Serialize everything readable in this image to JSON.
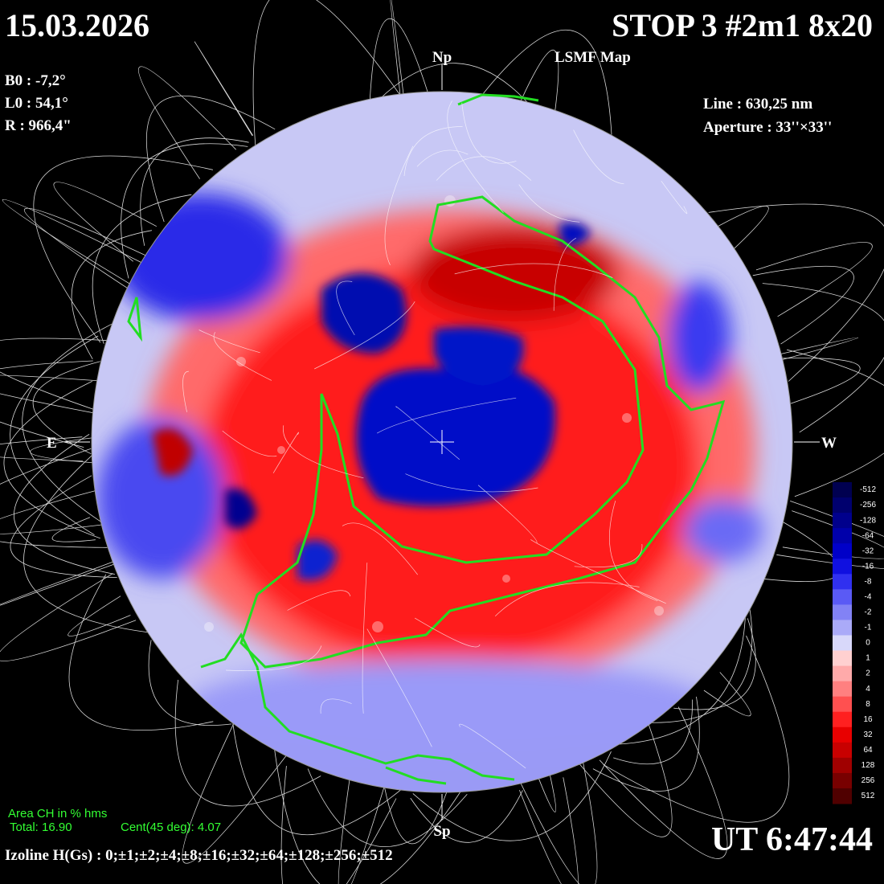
{
  "header": {
    "date": "15.03.2026",
    "title": "STOP 3 #2m1 8x20",
    "subtitle": "LSMF  Map"
  },
  "params": [
    "B0 : -7,2°",
    "L0 : 54,1°",
    "R  : 966,4\""
  ],
  "instrument": [
    "Line : 630,25 nm",
    "Aperture : 33''×33''"
  ],
  "directions": {
    "north": "Np",
    "south": "Sp",
    "east": "E",
    "west": "W"
  },
  "colorbar": {
    "labels": [
      -512,
      -256,
      -128,
      -64,
      -32,
      -16,
      -8,
      -4,
      -2,
      -1,
      0,
      1,
      2,
      4,
      8,
      16,
      32,
      64,
      128,
      256,
      512
    ],
    "colors": [
      "#000050",
      "#00006e",
      "#00008c",
      "#0000aa",
      "#0000c8",
      "#1010e0",
      "#3030f0",
      "#5a5af5",
      "#8282f5",
      "#aaaaf8",
      "#d8d8fa",
      "#ffd0d0",
      "#ffaaaa",
      "#ff8080",
      "#ff5050",
      "#ff2020",
      "#e80000",
      "#c80000",
      "#a00000",
      "#780000",
      "#500000"
    ]
  },
  "area": {
    "title": "Area CH in % hms",
    "total": "Total: 16.90",
    "cent": "Cent(45 deg): 4.07"
  },
  "izoline": "Izoline H(Gs) : 0;±1;±2;±4;±8;±16;±32;±64;±128;±256;±512",
  "time": "UT 6:47:44"
}
